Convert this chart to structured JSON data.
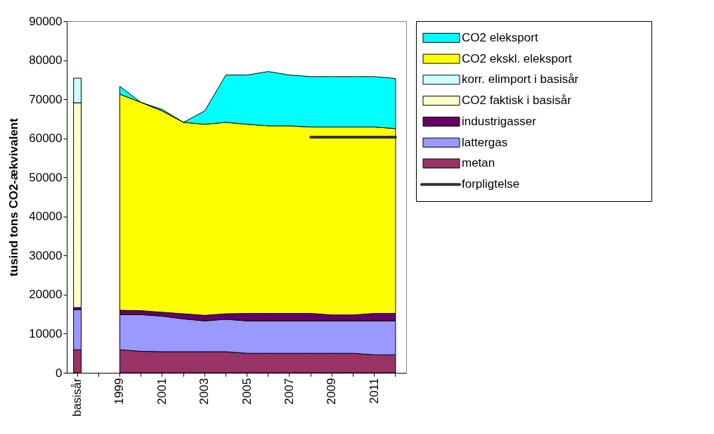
{
  "chart_data": {
    "type": "area",
    "stacked": true,
    "ylabel": "tusind tons CO2-ækvivalent",
    "categories": [
      "basisår",
      null,
      "1999",
      null,
      "2001",
      null,
      "2003",
      null,
      "2005",
      null,
      "2007",
      null,
      "2009",
      null,
      "2011",
      null
    ],
    "ylim": [
      0,
      90000
    ],
    "yticks": [
      0,
      10000,
      20000,
      30000,
      40000,
      50000,
      60000,
      70000,
      80000,
      90000
    ],
    "grid": false,
    "legend": "right",
    "series": [
      {
        "type": "bar",
        "color": "#993366",
        "values": [
          5900,
          null,
          null,
          null,
          null,
          null,
          null,
          null,
          null,
          null,
          null,
          null,
          null,
          null,
          null,
          null
        ]
      },
      {
        "type": "bar",
        "color": "#9999ff",
        "values": [
          10300,
          null,
          null,
          null,
          null,
          null,
          null,
          null,
          null,
          null,
          null,
          null,
          null,
          null,
          null,
          null
        ]
      },
      {
        "type": "bar",
        "color": "#660066",
        "values": [
          500,
          null,
          null,
          null,
          null,
          null,
          null,
          null,
          null,
          null,
          null,
          null,
          null,
          null,
          null,
          null
        ]
      },
      {
        "name": "metan",
        "color": "#993366",
        "values": [
          null,
          null,
          5900,
          5500,
          5400,
          5400,
          5400,
          5400,
          5000,
          5000,
          5000,
          5000,
          5000,
          5000,
          4600,
          4600
        ]
      },
      {
        "name": "lattergas",
        "color": "#9999ff",
        "values": [
          null,
          null,
          9000,
          9400,
          9100,
          8400,
          7900,
          8300,
          8300,
          8300,
          8300,
          8300,
          8300,
          8300,
          8700,
          8700
        ]
      },
      {
        "name": "industrigasser",
        "color": "#660066",
        "values": [
          null,
          null,
          1100,
          1000,
          1000,
          1300,
          1400,
          1400,
          1900,
          1900,
          1900,
          1900,
          1500,
          1500,
          1900,
          1900
        ]
      },
      {
        "name": "CO2 faktisk i basisår",
        "type": "bar",
        "color": "#ffffcc",
        "values": [
          52400,
          null,
          null,
          null,
          null,
          null,
          null,
          null,
          null,
          null,
          null,
          null,
          null,
          null,
          null,
          null
        ]
      },
      {
        "name": "korr. elimport i basisår",
        "type": "bar",
        "color": "#ccffff",
        "values": [
          6300,
          null,
          null,
          null,
          null,
          null,
          null,
          null,
          null,
          null,
          null,
          null,
          null,
          null,
          null,
          null
        ]
      },
      {
        "name": "CO2 ekskl. eleksport",
        "color": "#ffff00",
        "values": [
          null,
          null,
          55300,
          53300,
          51500,
          49000,
          48900,
          49000,
          48400,
          48000,
          48000,
          47700,
          48100,
          48100,
          47700,
          47300
        ]
      },
      {
        "name": "CO2 eleksport",
        "color": "#00ffff",
        "values": [
          null,
          null,
          2000,
          0,
          400,
          0,
          3400,
          12100,
          12600,
          13900,
          13000,
          12900,
          12900,
          12900,
          12900,
          12800
        ]
      },
      {
        "name": "forpligtelse",
        "type": "line",
        "color": "#333333",
        "values": [
          null,
          null,
          null,
          null,
          null,
          null,
          null,
          null,
          null,
          null,
          null,
          60300,
          60300,
          60300,
          60300,
          60300
        ]
      }
    ]
  }
}
